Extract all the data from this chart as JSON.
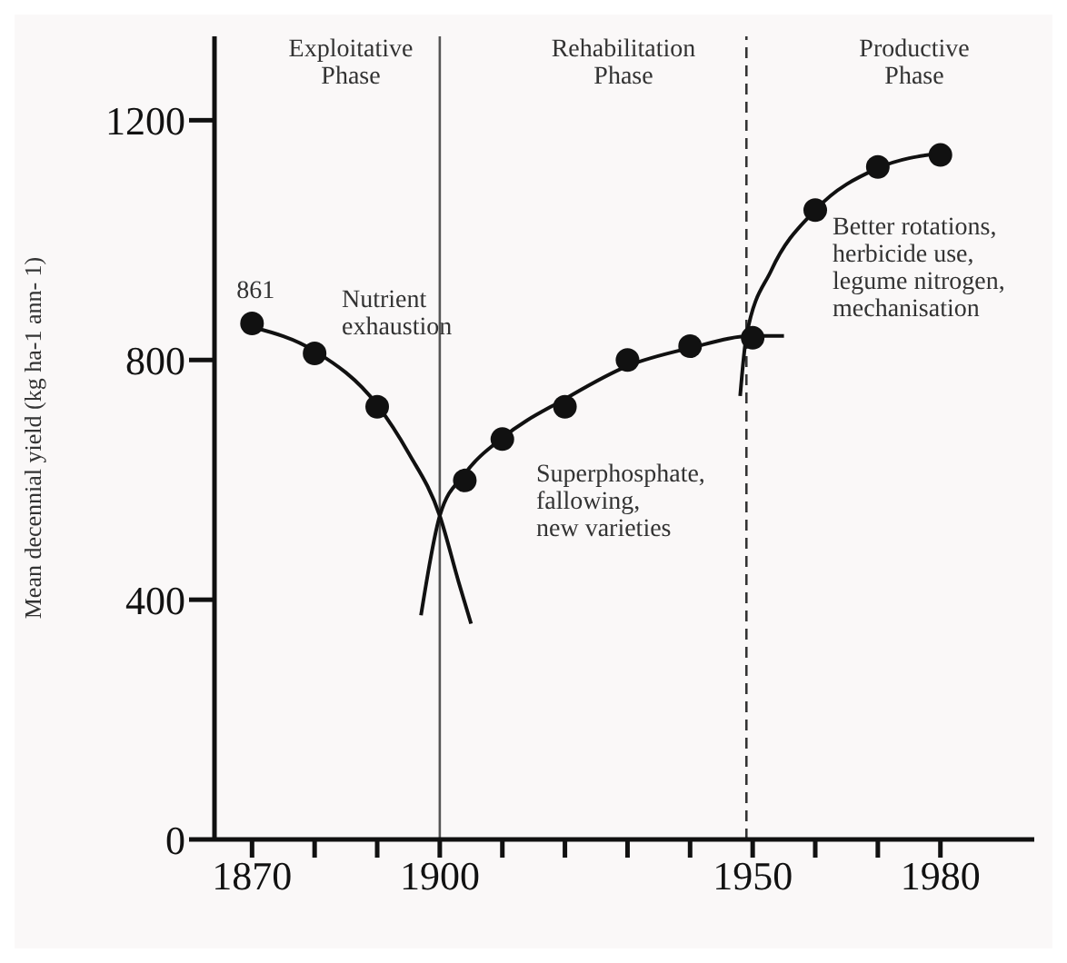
{
  "chart_data": {
    "type": "scatter",
    "ylabel": "Mean decennial yield (kg ha-1 ann- 1)",
    "xlim": [
      1864,
      1995
    ],
    "ylim": [
      0,
      1340
    ],
    "xticks": [
      1870,
      {
        "value": 1880,
        "label": null
      },
      {
        "value": 1890,
        "label": null
      },
      1900,
      {
        "value": 1910,
        "label": null
      },
      {
        "value": 1920,
        "label": null
      },
      {
        "value": 1930,
        "label": null
      },
      {
        "value": 1940,
        "label": null
      },
      1950,
      {
        "value": 1960,
        "label": null
      },
      {
        "value": 1970,
        "label": null
      },
      1980
    ],
    "yticks": [
      0,
      400,
      800,
      1200
    ],
    "grid": false,
    "legend": false,
    "series": [
      {
        "color": "#111111",
        "marker": "circle",
        "x": [
          1870,
          1880,
          1890,
          1904,
          1910,
          1920,
          1930,
          1940,
          1950,
          1960,
          1970,
          1980
        ],
        "values": [
          861,
          811,
          722,
          599,
          668,
          722,
          800,
          823,
          837,
          1050,
          1122,
          1142
        ],
        "value_labels": [
          "861",
          null,
          null,
          null,
          null,
          null,
          null,
          null,
          null,
          null,
          null,
          null
        ]
      },
      {
        "type": "line",
        "color": "#111111",
        "x": [
          1870,
          1880,
          1890,
          1895,
          1900,
          1903,
          1905
        ],
        "values": [
          855,
          815,
          725,
          645,
          540,
          430,
          360
        ]
      },
      {
        "type": "line",
        "color": "#111111",
        "x": [
          1897,
          1900,
          1904,
          1910,
          1920,
          1930,
          1940,
          1950,
          1955
        ],
        "values": [
          374,
          540,
          610,
          670,
          735,
          790,
          820,
          840,
          840
        ]
      },
      {
        "type": "line",
        "color": "#111111",
        "x": [
          1948,
          1949,
          1953,
          1960,
          1970,
          1980
        ],
        "values": [
          740,
          840,
          950,
          1050,
          1120,
          1145
        ]
      }
    ],
    "ref_lines": [
      {
        "axis": "x",
        "value": 1900,
        "color": "#555555",
        "line_style": "solid"
      },
      {
        "axis": "x",
        "value": 1949,
        "color": "#333333",
        "line_style": "dashed"
      }
    ],
    "annotations": [
      "Exploitative\nPhase",
      "Rehabilitation\nPhase",
      "Productive\nPhase",
      "Nutrient\nexhaustion",
      "Superphosphate,\nfallowing,\nnew varieties",
      "Better rotations,\nherbicide use,\nlegume nitrogen,\nmechanisation"
    ]
  }
}
